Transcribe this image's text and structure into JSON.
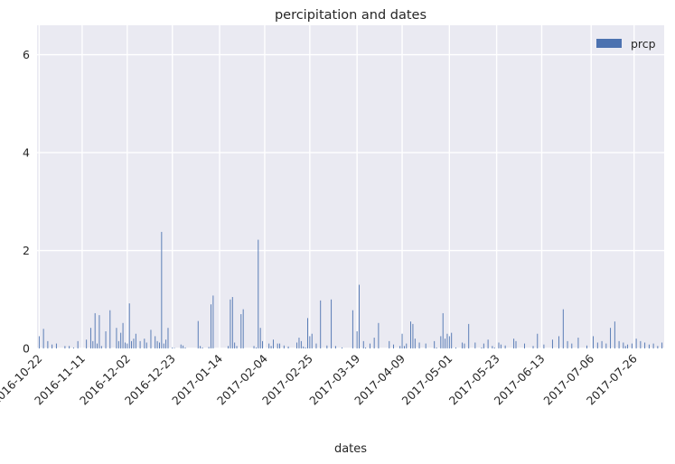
{
  "chart_data": {
    "type": "bar",
    "title": "percipitation and dates",
    "xlabel": "dates",
    "ylabel": "",
    "ylim": [
      0,
      6.6
    ],
    "yticks": [
      0,
      2,
      4,
      6
    ],
    "grid": true,
    "legend": {
      "position": "top-right",
      "entries": [
        {
          "label": "prcp",
          "color": "#4c72b0"
        }
      ]
    },
    "series_color": "#4c72b0",
    "background_color": "#eaeaf2",
    "xtick_labels": [
      "2016-10-22",
      "2016-11-11",
      "2016-12-02",
      "2016-12-23",
      "2017-01-14",
      "2017-02-04",
      "2017-02-25",
      "2017-03-19",
      "2017-04-09",
      "2017-05-01",
      "2017-05-23",
      "2017-06-13",
      "2017-07-06",
      "2017-07-26"
    ],
    "series": [
      {
        "name": "prcp",
        "x": [
          "2016-10-22",
          "2016-10-24",
          "2016-10-26",
          "2016-10-28",
          "2016-10-30",
          "2016-11-03",
          "2016-11-05",
          "2016-11-07",
          "2016-11-09",
          "2016-11-13",
          "2016-11-15",
          "2016-11-16",
          "2016-11-17",
          "2016-11-18",
          "2016-11-19",
          "2016-11-20",
          "2016-11-22",
          "2016-11-24",
          "2016-11-27",
          "2016-11-28",
          "2016-11-29",
          "2016-11-30",
          "2016-12-01",
          "2016-12-02",
          "2016-12-03",
          "2016-12-04",
          "2016-12-05",
          "2016-12-06",
          "2016-12-08",
          "2016-12-10",
          "2016-12-11",
          "2016-12-13",
          "2016-12-15",
          "2016-12-16",
          "2016-12-17",
          "2016-12-18",
          "2016-12-19",
          "2016-12-20",
          "2016-12-21",
          "2016-12-23",
          "2016-12-24",
          "2016-12-27",
          "2016-12-28",
          "2016-12-29",
          "2017-01-04",
          "2017-01-05",
          "2017-01-06",
          "2017-01-09",
          "2017-01-10",
          "2017-01-11",
          "2017-01-18",
          "2017-01-19",
          "2017-01-20",
          "2017-01-21",
          "2017-01-22",
          "2017-01-24",
          "2017-01-25",
          "2017-01-30",
          "2017-01-31",
          "2017-02-01",
          "2017-02-02",
          "2017-02-03",
          "2017-02-06",
          "2017-02-07",
          "2017-02-08",
          "2017-02-10",
          "2017-02-11",
          "2017-02-13",
          "2017-02-15",
          "2017-02-19",
          "2017-02-20",
          "2017-02-21",
          "2017-02-22",
          "2017-02-23",
          "2017-02-24",
          "2017-02-25",
          "2017-02-26",
          "2017-02-28",
          "2017-03-02",
          "2017-03-05",
          "2017-03-07",
          "2017-03-09",
          "2017-03-12",
          "2017-03-17",
          "2017-03-19",
          "2017-03-20",
          "2017-03-22",
          "2017-03-23",
          "2017-03-25",
          "2017-03-27",
          "2017-03-29",
          "2017-04-03",
          "2017-04-05",
          "2017-04-08",
          "2017-04-09",
          "2017-04-10",
          "2017-04-11",
          "2017-04-13",
          "2017-04-14",
          "2017-04-15",
          "2017-04-17",
          "2017-04-20",
          "2017-04-24",
          "2017-04-25",
          "2017-04-27",
          "2017-04-28",
          "2017-04-29",
          "2017-04-30",
          "2017-05-01",
          "2017-05-02",
          "2017-05-04",
          "2017-05-07",
          "2017-05-08",
          "2017-05-10",
          "2017-05-13",
          "2017-05-16",
          "2017-05-17",
          "2017-05-19",
          "2017-05-21",
          "2017-05-22",
          "2017-05-24",
          "2017-05-25",
          "2017-05-27",
          "2017-05-31",
          "2017-06-01",
          "2017-06-05",
          "2017-06-09",
          "2017-06-11",
          "2017-06-14",
          "2017-06-18",
          "2017-06-21",
          "2017-06-23",
          "2017-06-25",
          "2017-06-27",
          "2017-06-30",
          "2017-07-04",
          "2017-07-07",
          "2017-07-09",
          "2017-07-11",
          "2017-07-13",
          "2017-07-15",
          "2017-07-17",
          "2017-07-19",
          "2017-07-21",
          "2017-07-22",
          "2017-07-23",
          "2017-07-25",
          "2017-07-27",
          "2017-07-29",
          "2017-07-31",
          "2017-08-02",
          "2017-08-04",
          "2017-08-06",
          "2017-08-08"
        ],
        "values": [
          0.25,
          0.4,
          0.15,
          0.08,
          0.1,
          0.05,
          0.05,
          0.02,
          0.15,
          0.18,
          0.42,
          0.15,
          0.72,
          0.1,
          0.68,
          0.05,
          0.35,
          0.78,
          0.42,
          0.15,
          0.32,
          0.52,
          0.12,
          0.1,
          0.92,
          0.15,
          0.2,
          0.3,
          0.15,
          0.2,
          0.12,
          0.38,
          0.25,
          0.15,
          0.12,
          2.38,
          0.1,
          0.18,
          0.42,
          0.02,
          0.01,
          0.08,
          0.06,
          0.02,
          0.56,
          0.05,
          0.02,
          0.03,
          0.9,
          1.08,
          0.05,
          1.0,
          1.05,
          0.12,
          0.05,
          0.7,
          0.8,
          0.05,
          0.02,
          2.22,
          0.42,
          0.15,
          0.1,
          0.05,
          0.18,
          0.1,
          0.1,
          0.06,
          0.04,
          0.12,
          0.22,
          0.15,
          0.04,
          0.02,
          0.62,
          0.25,
          0.3,
          0.1,
          0.98,
          0.06,
          1.0,
          0.05,
          0.02,
          0.78,
          0.35,
          1.3,
          0.15,
          0.02,
          0.1,
          0.22,
          0.52,
          0.15,
          0.08,
          0.05,
          0.3,
          0.05,
          0.1,
          0.55,
          0.5,
          0.2,
          0.12,
          0.1,
          0.15,
          0.02,
          0.25,
          0.72,
          0.2,
          0.3,
          0.25,
          0.32,
          0.02,
          0.12,
          0.1,
          0.5,
          0.12,
          0.02,
          0.1,
          0.18,
          0.05,
          0.02,
          0.12,
          0.08,
          0.06,
          0.2,
          0.15,
          0.1,
          0.05,
          0.3,
          0.08,
          0.18,
          0.25,
          0.8,
          0.15,
          0.1,
          0.22,
          0.06,
          0.25,
          0.12,
          0.15,
          0.1,
          0.42,
          0.55,
          0.15,
          0.12,
          0.05,
          0.08,
          0.1,
          0.2,
          0.15,
          0.12,
          0.08,
          0.1,
          0.05,
          0.12
        ]
      }
    ]
  }
}
